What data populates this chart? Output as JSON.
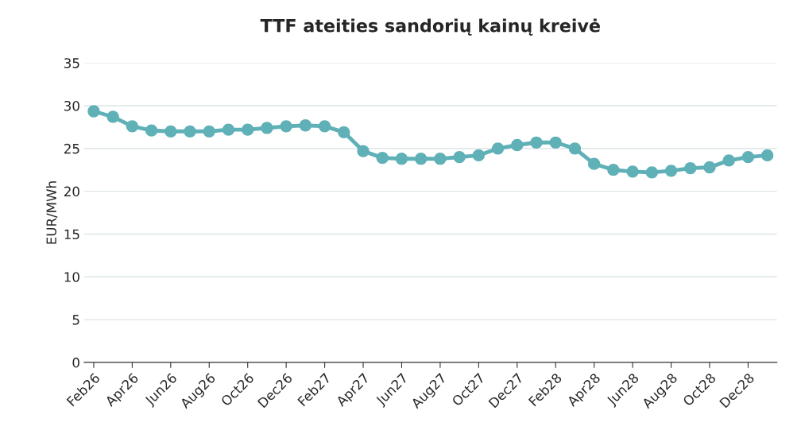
{
  "chart_data": {
    "type": "line",
    "title": "TTF ateities sandorių kainų kreivė",
    "ylabel": "EUR/MWh",
    "categories": [
      "Feb26",
      null,
      "Apr26",
      null,
      "Jun26",
      null,
      "Aug26",
      null,
      "Oct26",
      null,
      "Dec26",
      null,
      "Feb27",
      null,
      "Apr27",
      null,
      "Jun27",
      null,
      "Aug27",
      null,
      "Oct27",
      null,
      "Dec27",
      null,
      "Feb28",
      null,
      "Apr28",
      null,
      "Jun28",
      null,
      "Aug28",
      null,
      "Oct28",
      null,
      "Dec28",
      null
    ],
    "series": [
      {
        "color": "#5fb0b7",
        "values": [
          29.35,
          28.7,
          27.6,
          27.1,
          27.0,
          27.0,
          27.0,
          27.2,
          27.2,
          27.4,
          27.6,
          27.7,
          27.6,
          26.9,
          24.7,
          23.9,
          23.8,
          23.8,
          23.8,
          24.0,
          24.2,
          25.0,
          25.4,
          25.7,
          25.7,
          25.0,
          23.2,
          22.5,
          22.3,
          22.2,
          22.4,
          22.7,
          22.8,
          23.6,
          24.0,
          24.2
        ]
      }
    ],
    "ylim": [
      0,
      35
    ],
    "yticks": [
      0,
      5,
      10,
      15,
      20,
      25,
      30,
      35
    ],
    "grid": "y",
    "marker": "circle",
    "line_style": "solid",
    "legend": false
  }
}
